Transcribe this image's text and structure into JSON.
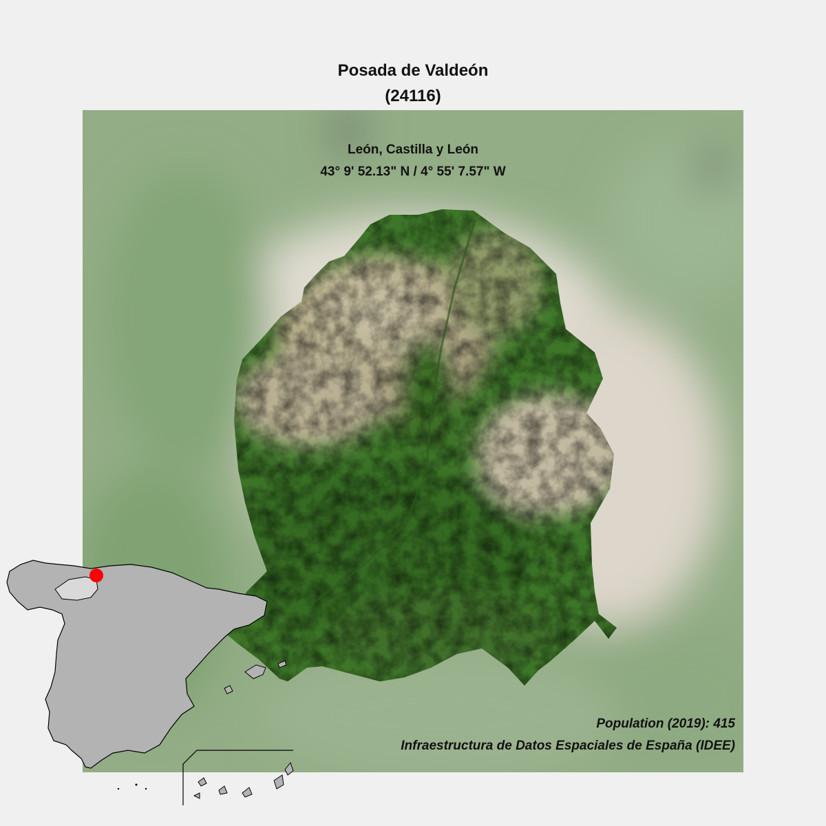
{
  "map": {
    "title_line1": "Posada de Valdeón",
    "title_line2": "(24116)",
    "region": "León, Castilla y León",
    "coordinates": "43° 9' 52.13\" N / 4° 55' 7.57\" W",
    "population": "Population (2019): 415",
    "source": "Infraestructura de Datos Espaciales de España (IDEE)"
  },
  "colors": {
    "background": "#f0f0f0",
    "imagery_green": "#3f7a2c",
    "imagery_rock": "#b9b39a",
    "haze": "#d9d6cf",
    "inset_land": "#b3b3b3",
    "inset_outline": "#000000",
    "location_marker": "#ff0000"
  },
  "icons": {
    "location_marker": "red-dot-icon"
  }
}
